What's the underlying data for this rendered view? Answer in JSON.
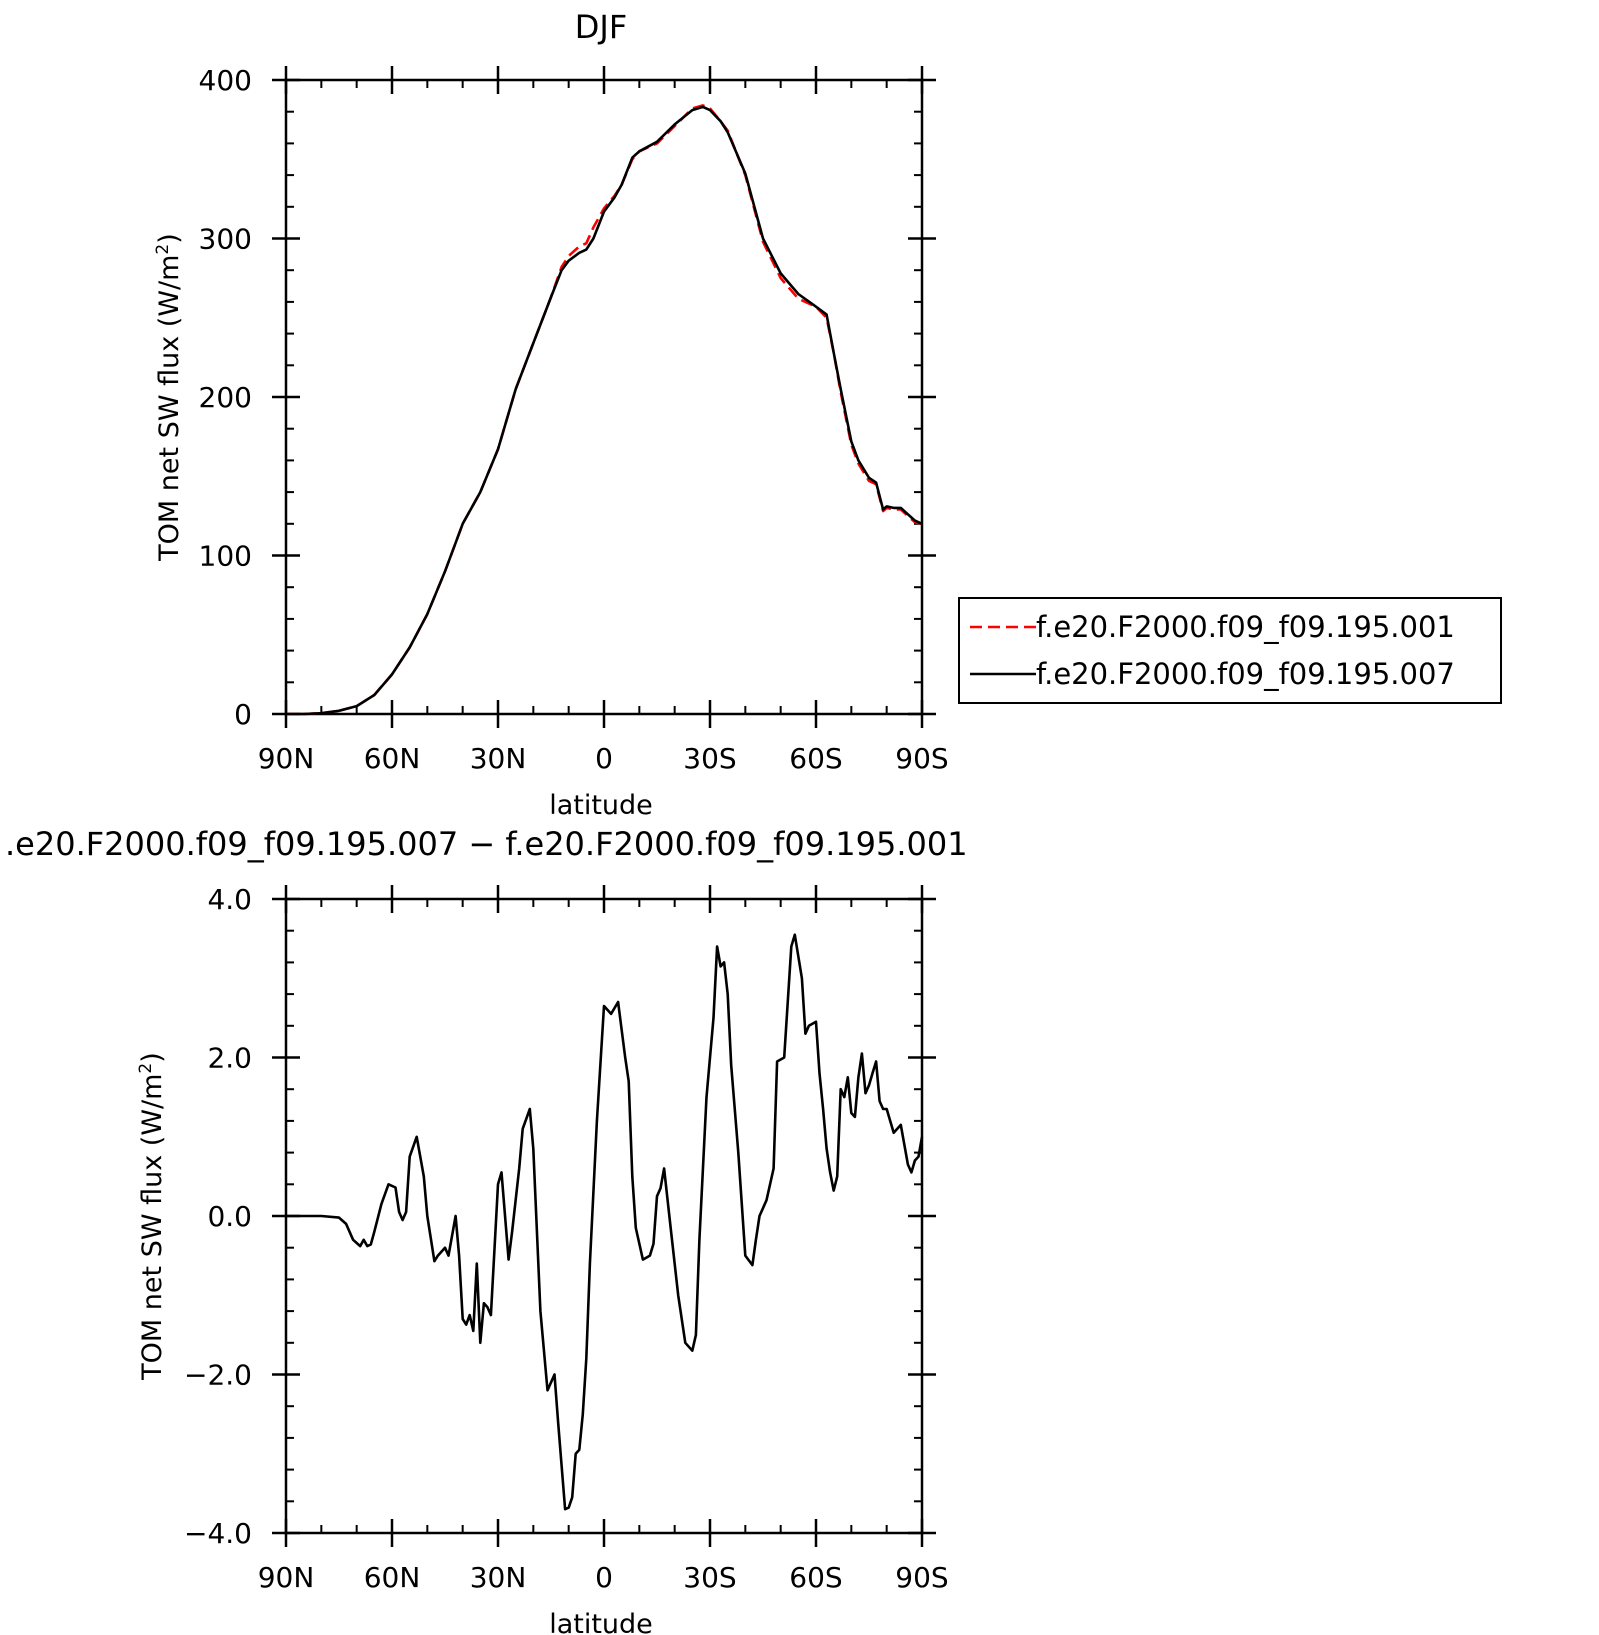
{
  "chart_data": [
    {
      "type": "line",
      "title": "DJF",
      "xlabel": "latitude",
      "ylabel": "TOM net SW flux (W/m",
      "ylabel_sup": "2",
      "ylabel_close": ")",
      "xlim": [
        90,
        -90
      ],
      "ylim": [
        0,
        400
      ],
      "x_ticks": [
        90,
        60,
        30,
        0,
        -30,
        -60,
        -90
      ],
      "x_tick_labels": [
        "90N",
        "60N",
        "30N",
        "0",
        "30S",
        "60S",
        "90S"
      ],
      "y_ticks": [
        0,
        100,
        200,
        300,
        400
      ],
      "y_tick_labels": [
        "0",
        "100",
        "200",
        "300",
        "400"
      ],
      "legend": "outside-right",
      "grid": false,
      "series": [
        {
          "name": "f.e20.F2000.f09_f09.195.001",
          "color": "#ff0000",
          "dash": "dashed",
          "x": [
            90,
            85,
            80,
            75,
            70,
            65,
            60,
            55,
            50,
            45,
            40,
            35,
            30,
            25,
            20,
            15,
            12,
            10,
            7,
            5,
            3,
            0,
            -3,
            -5,
            -8,
            -10,
            -15,
            -20,
            -25,
            -28,
            -30,
            -33,
            -35,
            -40,
            -45,
            -50,
            -55,
            -60,
            -63,
            -65,
            -67,
            -70,
            -72,
            -75,
            -77,
            -79,
            -80,
            -82,
            -84,
            -86,
            -88,
            -90
          ],
          "y": [
            0,
            0,
            0.5,
            2,
            5,
            12,
            25,
            42,
            63,
            90,
            120,
            140,
            167,
            205,
            234,
            263,
            282,
            289,
            295,
            297,
            307,
            319,
            327,
            334,
            350,
            355,
            360,
            371,
            382,
            384,
            382,
            374,
            368,
            340,
            298,
            275,
            262,
            257,
            250,
            228,
            203,
            170,
            158,
            147,
            145,
            128,
            130,
            129,
            129,
            125,
            121,
            120
          ]
        },
        {
          "name": "f.e20.F2000.f09_f09.195.007",
          "color": "#000000",
          "dash": "solid",
          "x": [
            90,
            85,
            80,
            75,
            70,
            65,
            60,
            55,
            50,
            45,
            40,
            35,
            30,
            25,
            20,
            15,
            12,
            10,
            7,
            5,
            3,
            0,
            -3,
            -5,
            -8,
            -10,
            -15,
            -20,
            -25,
            -28,
            -30,
            -33,
            -35,
            -40,
            -45,
            -50,
            -55,
            -60,
            -63,
            -65,
            -67,
            -70,
            -72,
            -75,
            -77,
            -79,
            -80,
            -82,
            -84,
            -86,
            -88,
            -90
          ],
          "y": [
            0,
            0,
            0.5,
            2,
            5,
            12,
            25,
            42,
            63,
            90,
            120,
            140,
            167,
            205,
            234,
            263,
            280,
            286,
            291,
            293,
            300,
            317,
            326,
            334,
            351,
            355,
            361,
            372,
            381,
            383,
            381,
            374,
            367,
            341,
            300,
            278,
            265,
            257,
            252,
            228,
            205,
            172,
            160,
            149,
            146,
            129,
            131,
            130,
            130,
            126,
            122,
            120
          ]
        }
      ]
    },
    {
      "type": "line",
      "title": ".e20.F2000.f09_f09.195.007 − f.e20.F2000.f09_f09.195.001",
      "xlabel": "latitude",
      "ylabel": "TOM net SW flux (W/m",
      "ylabel_sup": "2",
      "ylabel_close": ")",
      "xlim": [
        90,
        -90
      ],
      "ylim": [
        -4,
        4
      ],
      "x_ticks": [
        90,
        60,
        30,
        0,
        -30,
        -60,
        -90
      ],
      "x_tick_labels": [
        "90N",
        "60N",
        "30N",
        "0",
        "30S",
        "60S",
        "90S"
      ],
      "y_ticks": [
        -4,
        -2,
        0,
        2,
        4
      ],
      "y_tick_labels": [
        "−4.0",
        "−2.0",
        "0.0",
        "2.0",
        "4.0"
      ],
      "grid": false,
      "series": [
        {
          "color": "#000000",
          "dash": "solid",
          "x": [
            90,
            80,
            75,
            73,
            71,
            69,
            68,
            67,
            66,
            65,
            63,
            61,
            59,
            58,
            57,
            56,
            55,
            53,
            51,
            50,
            48,
            47,
            45,
            44,
            42,
            41,
            40,
            39,
            38,
            37,
            36,
            35,
            34,
            33,
            32,
            30,
            29,
            27,
            26,
            24,
            23,
            21,
            20,
            18,
            16,
            14,
            13,
            11,
            10,
            9,
            8,
            7,
            6,
            5,
            4,
            2,
            0,
            -2,
            -4,
            -6,
            -7,
            -8,
            -9,
            -11,
            -13,
            -14,
            -15,
            -16,
            -17,
            -19,
            -21,
            -23,
            -25,
            -26,
            -27,
            -29,
            -31,
            -32,
            -33,
            -34,
            -35,
            -36,
            -38,
            -40,
            -42,
            -43,
            -44,
            -46,
            -48,
            -49,
            -51,
            -53,
            -54,
            -56,
            -57,
            -58,
            -60,
            -61,
            -62,
            -63,
            -64,
            -65,
            -66,
            -67,
            -68,
            -69,
            -70,
            -71,
            -72,
            -73,
            -74,
            -75,
            -76,
            -77,
            -78,
            -79,
            -80,
            -82,
            -83,
            -84,
            -86,
            -87,
            -88,
            -89,
            -90
          ],
          "y": [
            0,
            0,
            -0.02,
            -0.1,
            -0.3,
            -0.38,
            -0.3,
            -0.38,
            -0.36,
            -0.2,
            0.15,
            0.4,
            0.36,
            0.05,
            -0.05,
            0.05,
            0.75,
            1.0,
            0.5,
            0.0,
            -0.57,
            -0.5,
            -0.4,
            -0.5,
            0.0,
            -0.5,
            -1.3,
            -1.37,
            -1.25,
            -1.45,
            -0.6,
            -1.6,
            -1.1,
            -1.15,
            -1.25,
            0.4,
            0.55,
            -0.55,
            -0.2,
            0.6,
            1.1,
            1.35,
            0.85,
            -1.2,
            -2.2,
            -2.0,
            -2.6,
            -3.7,
            -3.68,
            -3.55,
            -3.0,
            -2.95,
            -2.5,
            -1.8,
            -0.6,
            1.2,
            2.65,
            2.55,
            2.7,
            2.0,
            1.7,
            0.5,
            -0.15,
            -0.55,
            -0.5,
            -0.35,
            0.25,
            0.35,
            0.6,
            -0.2,
            -1.0,
            -1.6,
            -1.7,
            -1.5,
            -0.3,
            1.5,
            2.5,
            3.4,
            3.15,
            3.2,
            2.8,
            1.9,
            0.8,
            -0.5,
            -0.62,
            -0.3,
            0.0,
            0.2,
            0.6,
            1.95,
            2.0,
            3.4,
            3.55,
            3.0,
            2.3,
            2.4,
            2.45,
            1.8,
            1.35,
            0.85,
            0.55,
            0.32,
            0.5,
            1.6,
            1.5,
            1.75,
            1.3,
            1.25,
            1.75,
            2.05,
            1.55,
            1.65,
            1.8,
            1.95,
            1.45,
            1.35,
            1.35,
            1.05,
            1.1,
            1.15,
            0.65,
            0.55,
            0.7,
            0.75,
            1.0
          ]
        }
      ]
    }
  ]
}
